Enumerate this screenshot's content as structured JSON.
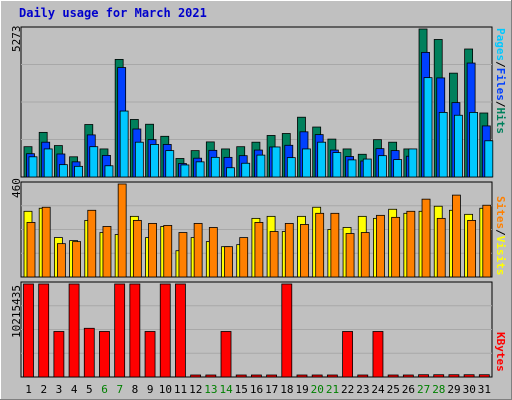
{
  "title": "Daily usage for March 2021",
  "colors": {
    "background": "#c0c0c0",
    "title": "#0000cc",
    "weekend_day": "#008000",
    "weekday_day": "#000000",
    "hits": "#00805c",
    "files": "#0040ff",
    "pages": "#00c8ff",
    "visits": "#ffff00",
    "sites": "#ff8000",
    "kbytes": "#ff0000"
  },
  "right_labels": {
    "top": {
      "pages": "Pages",
      "sep1": "/",
      "files": "Files",
      "sep2": "/",
      "hits": "Hits"
    },
    "middle": {
      "sites": "Sites",
      "sep": "/",
      "visits": "Visits"
    },
    "bottom": {
      "kbytes": "KBytes"
    }
  },
  "chart_data": {
    "type": "bar",
    "title": "Daily usage for March 2021",
    "categories": [
      "1",
      "2",
      "3",
      "4",
      "5",
      "6",
      "7",
      "8",
      "9",
      "10",
      "11",
      "12",
      "13",
      "14",
      "15",
      "16",
      "17",
      "18",
      "19",
      "20",
      "21",
      "22",
      "23",
      "24",
      "25",
      "26",
      "27",
      "28",
      "29",
      "30",
      "31"
    ],
    "weekend_days": [
      "6",
      "7",
      "13",
      "14",
      "20",
      "21",
      "27",
      "28"
    ],
    "panels": [
      {
        "name": "top",
        "max_label": "5273",
        "ylim": [
          0,
          5273
        ],
        "series": [
          {
            "name": "Hits",
            "color": "#00805c",
            "values": [
              1080,
              1590,
              1120,
              720,
              1870,
              1000,
              4190,
              2050,
              1880,
              1450,
              660,
              940,
              1250,
              1000,
              1080,
              1240,
              1480,
              1550,
              2130,
              1780,
              1350,
              1000,
              810,
              1330,
              1240,
              1000,
              5273,
              4900,
              3700,
              4560,
              2280
            ]
          },
          {
            "name": "Files",
            "color": "#0040ff",
            "values": [
              830,
              1240,
              820,
              540,
              1500,
              770,
              3900,
              1710,
              1330,
              1160,
              480,
              670,
              950,
              700,
              760,
              960,
              1070,
              1130,
              1610,
              1510,
              960,
              730,
              570,
              1010,
              940,
              740,
              4440,
              3530,
              2650,
              4060,
              1820
            ]
          },
          {
            "name": "Pages",
            "color": "#00c8ff",
            "values": [
              720,
              1000,
              440,
              380,
              1080,
              400,
              2350,
              1240,
              1160,
              940,
              430,
              540,
              700,
              330,
              490,
              780,
              1070,
              690,
              1000,
              1240,
              870,
              610,
              640,
              760,
              620,
              1000,
              3540,
              2300,
              2200,
              2300,
              1290
            ]
          }
        ]
      },
      {
        "name": "middle",
        "max_label": "460",
        "ylim": [
          0,
          460
        ],
        "series": [
          {
            "name": "Visits",
            "color": "#ffff00",
            "values": [
              325,
              340,
              195,
              180,
              280,
              220,
              210,
              300,
              195,
              250,
              130,
              195,
              175,
              150,
              160,
              290,
              300,
              225,
              300,
              345,
              235,
              245,
              300,
              290,
              335,
              315,
              325,
              350,
              330,
              310,
              340
            ]
          },
          {
            "name": "Sites",
            "color": "#ff8000",
            "values": [
              270,
              345,
              165,
              175,
              330,
              250,
              460,
              280,
              265,
              255,
              220,
              265,
              245,
              150,
              195,
              270,
              225,
              265,
              260,
              315,
              315,
              215,
              220,
              305,
              295,
              325,
              385,
              290,
              405,
              280,
              355
            ]
          }
        ]
      },
      {
        "name": "bottom",
        "max_label": "10215435",
        "ylim": [
          0,
          10215435
        ],
        "series": [
          {
            "name": "KBytes",
            "color": "#ff0000",
            "values": [
              10215435,
              10215435,
              5000000,
              10215435,
              5350000,
              5000000,
              10215435,
              10215435,
              5000000,
              10215435,
              10215435,
              120000,
              120000,
              5000000,
              120000,
              120000,
              120000,
              10215435,
              120000,
              120000,
              120000,
              5000000,
              120000,
              5000000,
              120000,
              120000,
              250000,
              250000,
              250000,
              250000,
              250000
            ]
          }
        ]
      }
    ]
  }
}
